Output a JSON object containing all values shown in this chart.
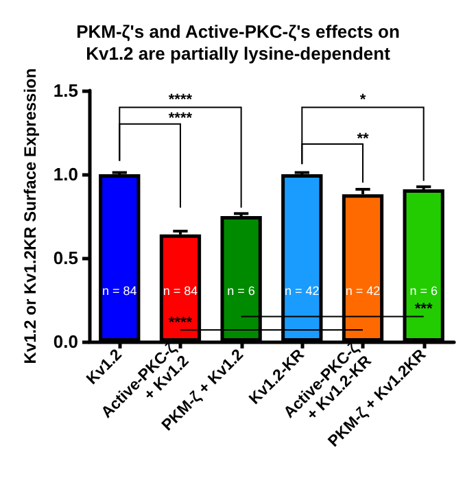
{
  "chart_data": {
    "type": "bar",
    "title": "PKM-ζ's and Active-PKC-ζ's effects on\nKv1.2 are partially lysine-dependent",
    "ylabel": "Kv1.2 or Kv1.2KR Surface Expression",
    "categories": [
      "Kv1.2",
      "Active-PKC-ζ\n+ Kv1.2",
      "PKM-ζ + Kv1.2",
      "Kv1.2-KR",
      "Active-PKC-ζ\n+ Kv1.2-KR",
      "PKM-ζ + Kv1.2KR"
    ],
    "values": [
      1.0,
      0.64,
      0.75,
      1.0,
      0.88,
      0.91
    ],
    "colors": [
      "#0000ff",
      "#ff0000",
      "#008a00",
      "#1a9cff",
      "#ff6a00",
      "#22cc00"
    ],
    "errors": [
      0.01,
      0.02,
      0.015,
      0.01,
      0.03,
      0.015
    ],
    "ylim": [
      0,
      1.5
    ],
    "yticks": [
      {
        "value": 0,
        "label": "0.0"
      },
      {
        "value": 0.5,
        "label": "0.5"
      },
      {
        "value": 1,
        "label": "1.0"
      },
      {
        "value": 1.5,
        "label": "1.5"
      }
    ],
    "annotations": [
      "n = 84",
      "n = 84",
      "n = 6",
      "n = 42",
      "n = 42",
      "n = 6",
      "****",
      "****",
      "**",
      "*",
      "****",
      "***"
    ],
    "grid": false
  }
}
